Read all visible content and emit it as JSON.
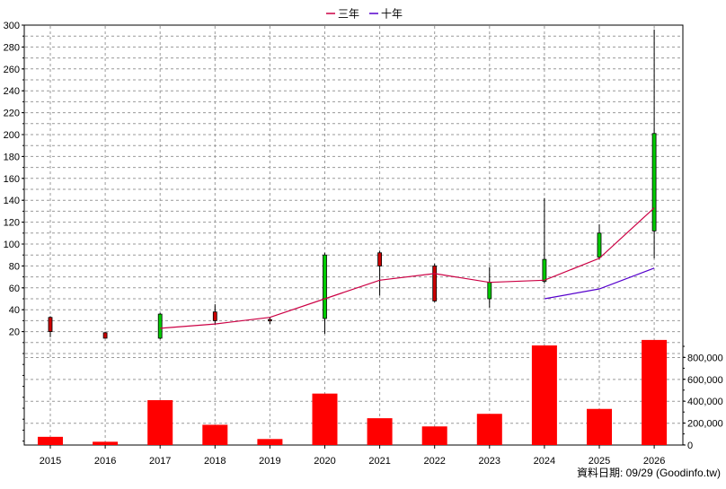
{
  "chart_data": [
    {
      "type": "candlestick",
      "title": "",
      "legend": {
        "placement": "top-center",
        "entries": [
          {
            "name": "三年",
            "color": "#cc0044"
          },
          {
            "name": "十年",
            "color": "#5500cc"
          }
        ]
      },
      "categories": [
        "2015",
        "2016",
        "2017",
        "2018",
        "2019",
        "2020",
        "2021",
        "2022",
        "2023",
        "2024",
        "2025",
        "2026"
      ],
      "ylim": [
        0,
        300
      ],
      "yticks": [
        20,
        40,
        60,
        80,
        100,
        120,
        140,
        160,
        180,
        200,
        220,
        240,
        260,
        280,
        300
      ],
      "grid": true,
      "candle_colors": {
        "up": "#cc0000",
        "down": "#00cc00",
        "outline": "#000000"
      },
      "candles": [
        {
          "open": 20,
          "close": 33,
          "high": 34,
          "low": 15
        },
        {
          "open": 14,
          "close": 19,
          "high": 20,
          "low": 14
        },
        {
          "open": 36,
          "close": 14,
          "high": 37,
          "low": 13
        },
        {
          "open": 30,
          "close": 38,
          "high": 45,
          "low": 26
        },
        {
          "open": 30,
          "close": 31,
          "high": 33,
          "low": 27
        },
        {
          "open": 90,
          "close": 32,
          "high": 92,
          "low": 18
        },
        {
          "open": 80,
          "close": 92,
          "high": 94,
          "low": 53
        },
        {
          "open": 48,
          "close": 80,
          "high": 82,
          "low": 47
        },
        {
          "open": 65,
          "close": 50,
          "high": 79,
          "low": 42
        },
        {
          "open": 86,
          "close": 66,
          "high": 142,
          "low": 64
        },
        {
          "open": 110,
          "close": 88,
          "high": 118,
          "low": 86
        },
        {
          "open": 201,
          "close": 112,
          "high": 296,
          "low": 87
        }
      ],
      "series": [
        {
          "name": "三年",
          "color": "#cc0044",
          "values": [
            null,
            null,
            23,
            27,
            33,
            50,
            67,
            73,
            65,
            67,
            87,
            133
          ]
        },
        {
          "name": "十年",
          "color": "#5500cc",
          "values": [
            null,
            null,
            null,
            null,
            null,
            null,
            null,
            null,
            null,
            50,
            59,
            78
          ]
        }
      ]
    },
    {
      "type": "bar",
      "categories": [
        "2015",
        "2016",
        "2017",
        "2018",
        "2019",
        "2020",
        "2021",
        "2022",
        "2023",
        "2024",
        "2025",
        "2026"
      ],
      "values": [
        75000,
        30000,
        410000,
        185000,
        55000,
        470000,
        245000,
        170000,
        285000,
        910000,
        330000,
        960000
      ],
      "color": "#ff0000",
      "ylim": [
        0,
        1000000
      ],
      "yticks": [
        0,
        200000,
        400000,
        600000,
        800000
      ],
      "ytick_labels": [
        "0",
        "200,000",
        "400,000",
        "600,000",
        "800,000"
      ],
      "yaxis_side": "right",
      "grid": true
    }
  ],
  "footer": {
    "source_text": "資料日期: 09/29 (Goodinfo.tw)"
  }
}
